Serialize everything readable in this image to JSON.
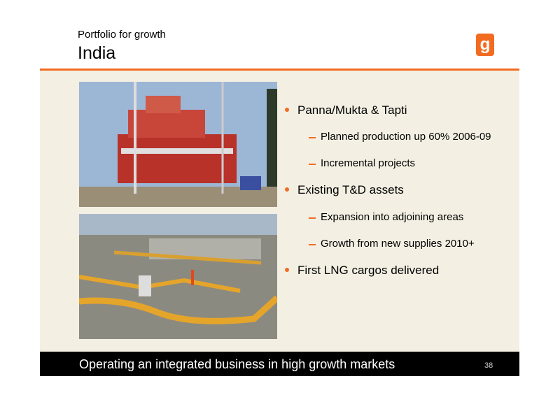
{
  "header": {
    "subtitle": "Portfolio for growth",
    "title": "India"
  },
  "bullets": [
    {
      "text": "Panna/Mukta & Tapti",
      "subs": [
        "Planned production up 60% 2006-09",
        "Incremental projects"
      ]
    },
    {
      "text": "Existing T&D assets",
      "subs": [
        "Expansion into adjoining areas",
        "Growth from new supplies 2010+"
      ]
    },
    {
      "text": "First LNG cargos delivered",
      "subs": []
    }
  ],
  "footer": {
    "text": "Operating an integrated business in high growth markets",
    "page_number": "38"
  }
}
